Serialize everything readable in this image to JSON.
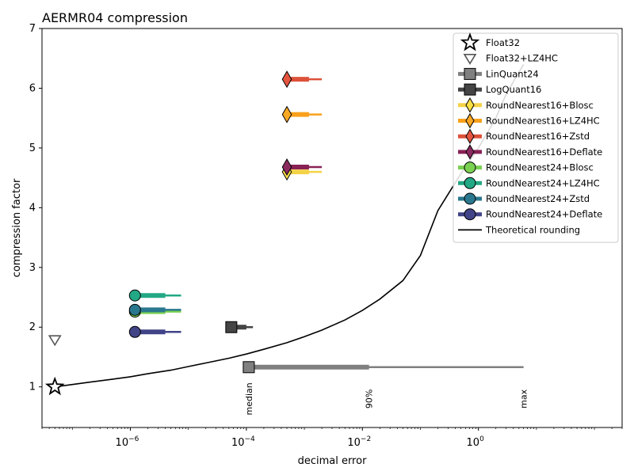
{
  "chart_data": {
    "type": "scatter",
    "title": "AERMR04 compression",
    "xlabel": "decimal error",
    "ylabel": "compression factor",
    "xscale": "log",
    "xlim": [
      3e-08,
      300
    ],
    "ylim": [
      0.32,
      7
    ],
    "x_ticks": [
      {
        "v": 1e-06,
        "base": "10",
        "exp": "−6"
      },
      {
        "v": 0.0001,
        "base": "10",
        "exp": "−4"
      },
      {
        "v": 0.01,
        "base": "10",
        "exp": "−2"
      },
      {
        "v": 1,
        "base": "10",
        "exp": "0"
      }
    ],
    "y_ticks": [
      "1",
      "2",
      "3",
      "4",
      "5",
      "6",
      "7"
    ],
    "legend_position": "top-right",
    "annotations": [
      {
        "text": "median",
        "x": 0.00011,
        "y": 0.6
      },
      {
        "text": "90%",
        "x": 0.013,
        "y": 0.6
      },
      {
        "text": "max",
        "x": 6.0,
        "y": 0.6
      }
    ],
    "series": [
      {
        "name": "Float32",
        "marker": "star",
        "color": "#ffffff",
        "edge": "#000000",
        "x": 5e-08,
        "y": 1.0
      },
      {
        "name": "Float32+LZ4HC",
        "marker": "triangle-down",
        "color": "#ffffff",
        "edge": "#555555",
        "x": 5e-08,
        "y": 1.79
      },
      {
        "name": "LinQuant24",
        "marker": "square",
        "color": "#808080",
        "edge": "#000000",
        "x": 0.00011,
        "y": 1.33,
        "p90": 0.013,
        "max": 6.0
      },
      {
        "name": "LogQuant16",
        "marker": "square",
        "color": "#444444",
        "edge": "#000000",
        "x": 5.5e-05,
        "y": 2.0,
        "p90": 0.0001,
        "max": 0.00013
      },
      {
        "name": "RoundNearest16+Blosc",
        "marker": "diamond",
        "color": "#fde047",
        "line": "#f4d248",
        "x": 0.0005,
        "y": 4.6,
        "p90": 0.0012,
        "max": 0.002
      },
      {
        "name": "RoundNearest16+LZ4HC",
        "marker": "diamond",
        "color": "#f9a825",
        "line": "#f9a11b",
        "x": 0.0005,
        "y": 5.56,
        "p90": 0.0012,
        "max": 0.002
      },
      {
        "name": "RoundNearest16+Zstd",
        "marker": "diamond",
        "color": "#e4553f",
        "line": "#dd513a",
        "x": 0.0005,
        "y": 6.15,
        "p90": 0.0012,
        "max": 0.002
      },
      {
        "name": "RoundNearest16+Deflate",
        "marker": "diamond",
        "color": "#8c2a5f",
        "line": "#882255",
        "x": 0.0005,
        "y": 4.68,
        "p90": 0.0012,
        "max": 0.002
      },
      {
        "name": "RoundNearest24+Blosc",
        "marker": "circle",
        "color": "#7ad151",
        "line": "#7ad151",
        "x": 1.2e-06,
        "y": 2.26,
        "p90": 4e-06,
        "max": 7.5e-06
      },
      {
        "name": "RoundNearest24+LZ4HC",
        "marker": "circle",
        "color": "#22a884",
        "line": "#22a884",
        "x": 1.2e-06,
        "y": 2.53,
        "p90": 4e-06,
        "max": 7.5e-06
      },
      {
        "name": "RoundNearest24+Zstd",
        "marker": "circle",
        "color": "#2a788e",
        "line": "#2a788e",
        "x": 1.2e-06,
        "y": 2.29,
        "p90": 4e-06,
        "max": 7.5e-06
      },
      {
        "name": "RoundNearest24+Deflate",
        "marker": "circle",
        "color": "#414487",
        "line": "#414487",
        "x": 1.2e-06,
        "y": 1.92,
        "p90": 4e-06,
        "max": 7.5e-06
      },
      {
        "name": "Theoretical rounding",
        "marker": "line",
        "color": "#000000",
        "x": [
          5e-08,
          1e-07,
          2e-07,
          5e-07,
          1e-06,
          2e-06,
          5e-06,
          1e-05,
          2e-05,
          5e-05,
          0.0001,
          0.0002,
          0.0005,
          0.001,
          0.002,
          0.005,
          0.01,
          0.02,
          0.05,
          0.1,
          0.2,
          0.5,
          1,
          2,
          3,
          6
        ],
        "y": [
          1.0,
          1.04,
          1.08,
          1.13,
          1.17,
          1.22,
          1.28,
          1.34,
          1.4,
          1.48,
          1.55,
          1.63,
          1.74,
          1.84,
          1.95,
          2.12,
          2.28,
          2.47,
          2.78,
          3.2,
          3.95,
          4.57,
          5.0,
          5.5,
          5.9,
          6.4
        ]
      }
    ]
  }
}
